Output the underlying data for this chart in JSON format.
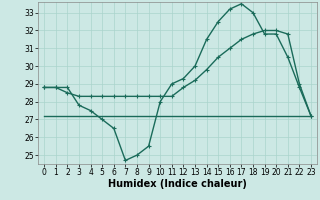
{
  "title": "",
  "xlabel": "Humidex (Indice chaleur)",
  "bg_color": "#cce8e4",
  "grid_color": "#aad4cc",
  "line_color": "#1a6b5a",
  "xlim": [
    -0.5,
    23.5
  ],
  "ylim": [
    24.5,
    33.6
  ],
  "yticks": [
    25,
    26,
    27,
    28,
    29,
    30,
    31,
    32,
    33
  ],
  "xticks": [
    0,
    1,
    2,
    3,
    4,
    5,
    6,
    7,
    8,
    9,
    10,
    11,
    12,
    13,
    14,
    15,
    16,
    17,
    18,
    19,
    20,
    21,
    22,
    23
  ],
  "line1_x": [
    0,
    1,
    2,
    3,
    4,
    5,
    6,
    7,
    8,
    9,
    10,
    11,
    12,
    13,
    14,
    15,
    16,
    17,
    18,
    19,
    20,
    21,
    22,
    23
  ],
  "line1_y": [
    28.8,
    28.8,
    28.8,
    27.8,
    27.5,
    27.0,
    26.5,
    24.7,
    25.0,
    25.5,
    28.0,
    29.0,
    29.3,
    30.0,
    31.5,
    32.5,
    33.2,
    33.5,
    33.0,
    31.8,
    31.8,
    30.5,
    28.8,
    27.2
  ],
  "line2_x": [
    0,
    1,
    2,
    3,
    4,
    5,
    6,
    7,
    8,
    9,
    10,
    11,
    12,
    13,
    14,
    15,
    16,
    17,
    18,
    19,
    20,
    21,
    22,
    23
  ],
  "line2_y": [
    28.8,
    28.8,
    28.5,
    28.3,
    28.3,
    28.3,
    28.3,
    28.3,
    28.3,
    28.3,
    28.3,
    28.3,
    28.8,
    29.2,
    29.8,
    30.5,
    31.0,
    31.5,
    31.8,
    32.0,
    32.0,
    31.8,
    29.0,
    27.2
  ],
  "line3_x": [
    0,
    2,
    3,
    4,
    5,
    6,
    7,
    8,
    9,
    10,
    11,
    12,
    13,
    14,
    15,
    16,
    17,
    23
  ],
  "line3_y": [
    27.2,
    27.2,
    27.2,
    27.2,
    27.2,
    27.2,
    27.2,
    27.2,
    27.2,
    27.2,
    27.2,
    27.2,
    27.2,
    27.2,
    27.2,
    27.2,
    27.2,
    27.2
  ],
  "xlabel_fontsize": 7,
  "tick_fontsize": 5.5,
  "linewidth": 1.0,
  "markersize": 3.5
}
